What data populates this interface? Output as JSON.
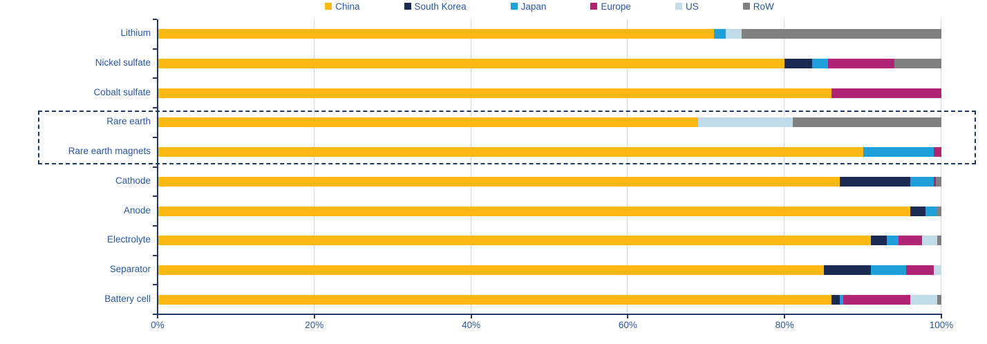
{
  "chart_data": {
    "type": "bar",
    "orientation": "horizontal-stacked",
    "title": "",
    "xlabel": "",
    "ylabel": "",
    "xlim": [
      0,
      100
    ],
    "x_ticks": [
      "0%",
      "20%",
      "40%",
      "60%",
      "80%",
      "100%"
    ],
    "x_tick_values": [
      0,
      20,
      40,
      60,
      80,
      100
    ],
    "grid": true,
    "legend_position": "top",
    "categories": [
      "Lithium",
      "Nickel sulfate",
      "Cobalt sulfate",
      "Rare earth",
      "Rare earth magnets",
      "Cathode",
      "Anode",
      "Electrolyte",
      "Separator",
      "Battery cell"
    ],
    "series": [
      {
        "name": "China",
        "color": "#FDB813",
        "values": [
          71,
          80,
          86,
          69,
          90,
          87,
          96,
          91,
          85,
          86
        ]
      },
      {
        "name": "South Korea",
        "color": "#1C2B54",
        "values": [
          0,
          3.5,
          0,
          0,
          0,
          9,
          2,
          2,
          6,
          1
        ]
      },
      {
        "name": "Japan",
        "color": "#1FA0DB",
        "values": [
          1.5,
          2,
          0,
          0,
          9,
          3,
          1.5,
          1.5,
          4.5,
          0.5
        ]
      },
      {
        "name": "Europe",
        "color": "#B02573",
        "values": [
          0,
          8.5,
          14,
          0,
          1,
          0.3,
          0,
          3,
          3.5,
          8.5
        ]
      },
      {
        "name": "US",
        "color": "#BFDCE8",
        "values": [
          2,
          0,
          0,
          12,
          0,
          0,
          0,
          2,
          1,
          3.5
        ]
      },
      {
        "name": "RoW",
        "color": "#808080",
        "values": [
          25.5,
          6,
          0,
          19,
          0,
          0.7,
          0.5,
          0.5,
          0,
          0.5
        ]
      }
    ],
    "highlight": {
      "style": "dashed-box",
      "rows": [
        "Rare earth",
        "Rare earth magnets"
      ]
    }
  },
  "colors": {
    "axis": "#1F3864",
    "gridline": "#D6D6D6",
    "label_text": "#2857A4",
    "highlight_border": "#1F3864",
    "background": "#FFFFFF"
  }
}
